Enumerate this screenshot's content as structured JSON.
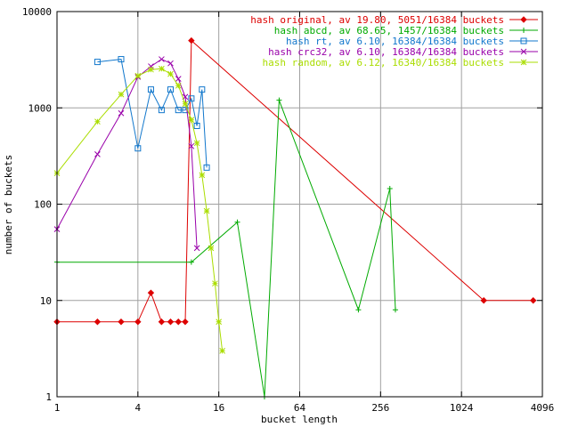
{
  "chart_data": {
    "type": "line",
    "xlabel": "bucket length",
    "ylabel": "number of buckets",
    "x_scale": "log",
    "y_scale": "log",
    "xlim": [
      1,
      4096
    ],
    "ylim": [
      1,
      10000
    ],
    "grid": true,
    "legend_position": "top-right",
    "x_ticks": [
      "1",
      "4",
      "16",
      "64",
      "256",
      "1024",
      "4096"
    ],
    "y_ticks": [
      "1",
      "10",
      "100",
      "1000",
      "10000"
    ],
    "series": [
      {
        "name": "hash original, av 19.80, 5051/16384 buckets",
        "color": "#dd0000",
        "marker": "diamond",
        "x": [
          1,
          2,
          3,
          4,
          5,
          6,
          7,
          8,
          9,
          10,
          1500,
          3500
        ],
        "y": [
          6,
          6,
          6,
          6,
          12,
          6,
          6,
          6,
          6,
          5000,
          10,
          10
        ]
      },
      {
        "name": "hash abcd, av 68.65, 1457/16384 buckets",
        "color": "#00aa00",
        "marker": "plus",
        "x": [
          1,
          10,
          22,
          35,
          45,
          175,
          300,
          330
        ],
        "y": [
          25,
          25,
          65,
          1,
          1200,
          8,
          145,
          8
        ]
      },
      {
        "name": "hash rt, av 6.10, 16384/16384 buckets",
        "color": "#1177cc",
        "marker": "square",
        "x": [
          2,
          3,
          4,
          5,
          6,
          7,
          8,
          9,
          10,
          11,
          12,
          13
        ],
        "y": [
          3000,
          3200,
          380,
          1550,
          950,
          1550,
          950,
          950,
          1250,
          650,
          1550,
          240
        ]
      },
      {
        "name": "hash crc32, av 6.10, 16384/16384 buckets",
        "color": "#9900aa",
        "marker": "x",
        "x": [
          1,
          2,
          3,
          4,
          5,
          6,
          7,
          8,
          9,
          10,
          11
        ],
        "y": [
          55,
          330,
          880,
          2100,
          2700,
          3200,
          2900,
          2000,
          1300,
          400,
          35
        ]
      },
      {
        "name": "hash random, av 6.12, 16340/16384 buckets",
        "color": "#aadd00",
        "marker": "star",
        "x": [
          1,
          2,
          3,
          4,
          5,
          6,
          7,
          8,
          9,
          10,
          11,
          12,
          13,
          14,
          15,
          16,
          17
        ],
        "y": [
          210,
          720,
          1380,
          2150,
          2500,
          2550,
          2250,
          1700,
          1100,
          750,
          430,
          200,
          85,
          35,
          15,
          6,
          3
        ]
      }
    ]
  }
}
